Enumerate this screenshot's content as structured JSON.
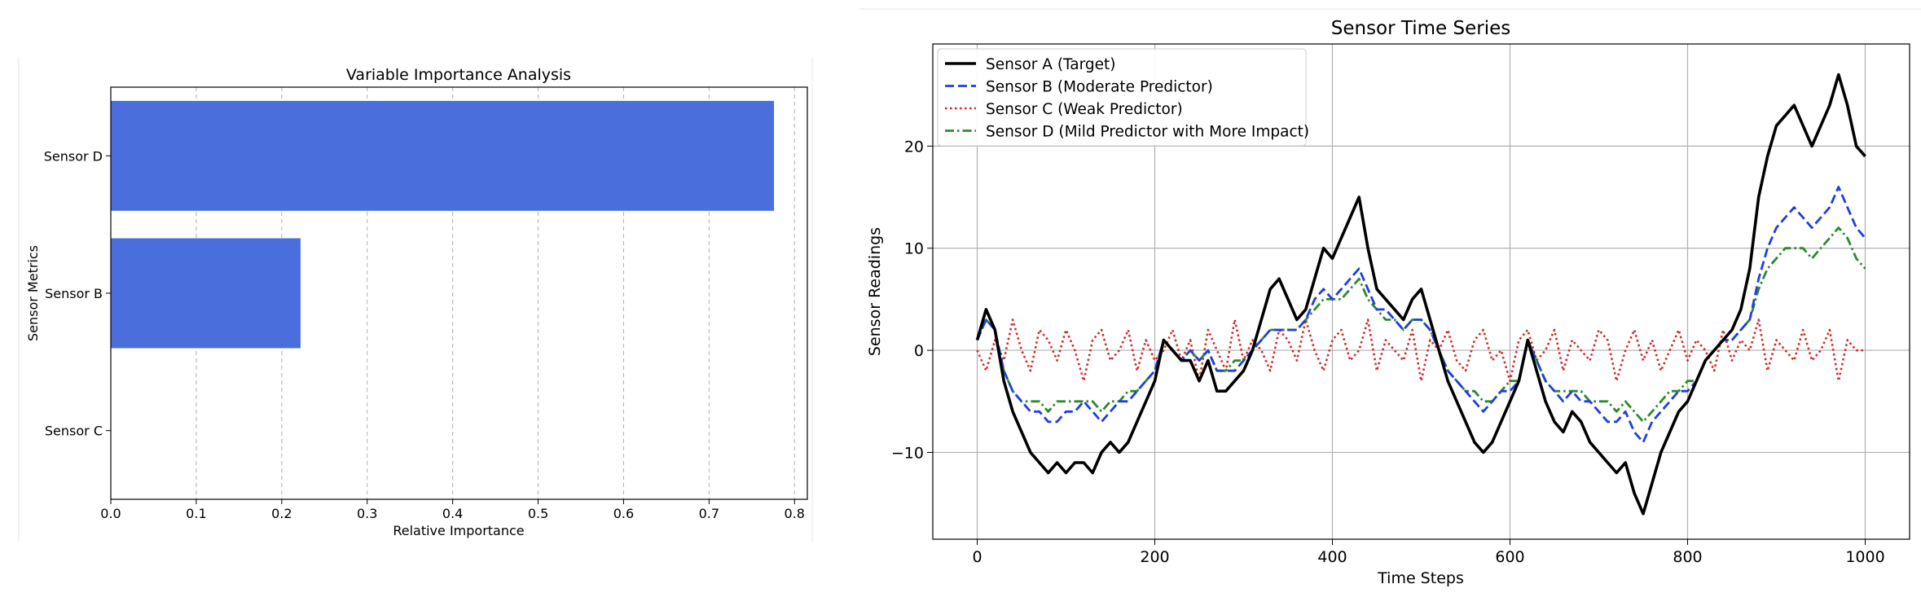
{
  "chart_data": [
    {
      "type": "bar",
      "orientation": "horizontal",
      "title": "Variable Importance Analysis",
      "xlabel": "Relative Importance",
      "ylabel": "Sensor Metrics",
      "categories": [
        "Sensor D",
        "Sensor B",
        "Sensor C"
      ],
      "values": [
        0.776,
        0.222,
        0.0
      ],
      "xlim": [
        0.0,
        0.815
      ],
      "xticks": [
        0.0,
        0.1,
        0.2,
        0.3,
        0.4,
        0.5,
        0.6,
        0.7,
        0.8
      ],
      "xtick_labels": [
        "0.0",
        "0.1",
        "0.2",
        "0.3",
        "0.4",
        "0.5",
        "0.6",
        "0.7",
        "0.8"
      ],
      "grid": "x-dashed",
      "bar_color": "#4a6edb"
    },
    {
      "type": "line",
      "title": "Sensor Time Series",
      "xlabel": "Time Steps",
      "ylabel": "Sensor Readings",
      "xlim": [
        -50,
        1050
      ],
      "ylim": [
        -18.5,
        30
      ],
      "xticks": [
        0,
        200,
        400,
        600,
        800,
        1000
      ],
      "xtick_labels": [
        "0",
        "200",
        "400",
        "600",
        "800",
        "1000"
      ],
      "yticks": [
        -10,
        0,
        10,
        20
      ],
      "ytick_labels": [
        "−10",
        "0",
        "10",
        "20"
      ],
      "grid": true,
      "legend_position": "top-left",
      "x": [
        0,
        10,
        20,
        30,
        40,
        50,
        60,
        70,
        80,
        90,
        100,
        110,
        120,
        130,
        140,
        150,
        160,
        170,
        180,
        190,
        200,
        210,
        220,
        230,
        240,
        250,
        260,
        270,
        280,
        290,
        300,
        310,
        320,
        330,
        340,
        350,
        360,
        370,
        380,
        390,
        400,
        410,
        420,
        430,
        440,
        450,
        460,
        470,
        480,
        490,
        500,
        510,
        520,
        530,
        540,
        550,
        560,
        570,
        580,
        590,
        600,
        610,
        620,
        630,
        640,
        650,
        660,
        670,
        680,
        690,
        700,
        710,
        720,
        730,
        740,
        750,
        760,
        770,
        780,
        790,
        800,
        810,
        820,
        830,
        840,
        850,
        860,
        870,
        880,
        890,
        900,
        910,
        920,
        930,
        940,
        950,
        960,
        970,
        980,
        990,
        1000
      ],
      "series": [
        {
          "name": "Sensor A (Target)",
          "color": "#000000",
          "style": "solid",
          "values": [
            1,
            4,
            2,
            -3,
            -6,
            -8,
            -10,
            -11,
            -12,
            -11,
            -12,
            -11,
            -11,
            -12,
            -10,
            -9,
            -10,
            -9,
            -7,
            -5,
            -3,
            1,
            0,
            -1,
            -1,
            -3,
            -1,
            -4,
            -4,
            -3,
            -2,
            0,
            3,
            6,
            7,
            5,
            3,
            4,
            7,
            10,
            9,
            11,
            13,
            15,
            10,
            6,
            5,
            4,
            3,
            5,
            6,
            3,
            0,
            -3,
            -5,
            -7,
            -9,
            -10,
            -9,
            -7,
            -5,
            -3,
            1,
            -2,
            -5,
            -7,
            -8,
            -6,
            -7,
            -9,
            -10,
            -11,
            -12,
            -11,
            -14,
            -16,
            -13,
            -10,
            -8,
            -6,
            -5,
            -3,
            -1,
            0,
            1,
            2,
            4,
            8,
            15,
            19,
            22,
            23,
            24,
            22,
            20,
            22,
            24,
            27,
            24,
            20,
            19
          ]
        },
        {
          "name": "Sensor B (Moderate Predictor)",
          "color": "#1f3fe0",
          "style": "dashed",
          "values": [
            1,
            3,
            2,
            -2,
            -4,
            -5,
            -6,
            -6,
            -7,
            -7,
            -6,
            -6,
            -5,
            -6,
            -7,
            -6,
            -5,
            -5,
            -4,
            -3,
            -2,
            1,
            0,
            -1,
            0,
            -1,
            0,
            -2,
            -2,
            -2,
            -1,
            0,
            1,
            2,
            2,
            2,
            2,
            3,
            5,
            6,
            5,
            6,
            7,
            8,
            6,
            4,
            4,
            3,
            2,
            3,
            3,
            2,
            0,
            -2,
            -3,
            -4,
            -5,
            -6,
            -5,
            -4,
            -4,
            -3,
            1,
            -1,
            -3,
            -4,
            -5,
            -4,
            -5,
            -5,
            -6,
            -7,
            -7,
            -6,
            -8,
            -9,
            -7,
            -6,
            -5,
            -4,
            -4,
            -3,
            -1,
            0,
            1,
            1,
            2,
            3,
            7,
            10,
            12,
            13,
            14,
            13,
            12,
            13,
            14,
            16,
            14,
            12,
            11
          ]
        },
        {
          "name": "Sensor C (Weak Predictor)",
          "color": "#d62728",
          "style": "dotted",
          "values": [
            0,
            -2,
            1,
            -1,
            3,
            0,
            -2,
            2,
            1,
            -1,
            2,
            0,
            -3,
            1,
            2,
            -1,
            0,
            2,
            -2,
            1,
            -1,
            0,
            2,
            -1,
            1,
            -3,
            2,
            0,
            -2,
            3,
            -1,
            1,
            0,
            -2,
            2,
            1,
            -1,
            3,
            0,
            -2,
            1,
            2,
            -1,
            0,
            3,
            -2,
            1,
            0,
            -1,
            2,
            -3,
            1,
            0,
            2,
            -1,
            -2,
            1,
            2,
            -1,
            0,
            -3,
            1,
            2,
            -1,
            0,
            2,
            -2,
            1,
            0,
            -1,
            2,
            1,
            -3,
            0,
            2,
            -1,
            1,
            -2,
            0,
            2,
            -1,
            1,
            0,
            -2,
            2,
            -1,
            1,
            0,
            3,
            -2,
            1,
            0,
            -1,
            2,
            -1,
            0,
            2,
            -3,
            1,
            0,
            0
          ]
        },
        {
          "name": "Sensor D (Mild Predictor with More Impact)",
          "color": "#2c8a2c",
          "style": "dashdot",
          "values": [
            1,
            3,
            2,
            -2,
            -4,
            -5,
            -5,
            -5,
            -6,
            -5,
            -5,
            -5,
            -5,
            -5,
            -6,
            -5,
            -5,
            -4,
            -4,
            -3,
            -2,
            1,
            0,
            -1,
            0,
            -1,
            0,
            -2,
            -2,
            -1,
            -1,
            0,
            1,
            2,
            2,
            2,
            2,
            3,
            4,
            5,
            5,
            5,
            6,
            7,
            5,
            4,
            3,
            3,
            2,
            3,
            3,
            2,
            0,
            -2,
            -3,
            -4,
            -4,
            -5,
            -5,
            -4,
            -3,
            -3,
            1,
            -1,
            -3,
            -4,
            -4,
            -4,
            -4,
            -5,
            -5,
            -5,
            -6,
            -5,
            -6,
            -7,
            -6,
            -5,
            -4,
            -4,
            -3,
            -3,
            -1,
            0,
            1,
            1,
            2,
            3,
            6,
            8,
            9,
            10,
            10,
            10,
            9,
            10,
            11,
            12,
            11,
            9,
            8
          ]
        }
      ]
    }
  ]
}
